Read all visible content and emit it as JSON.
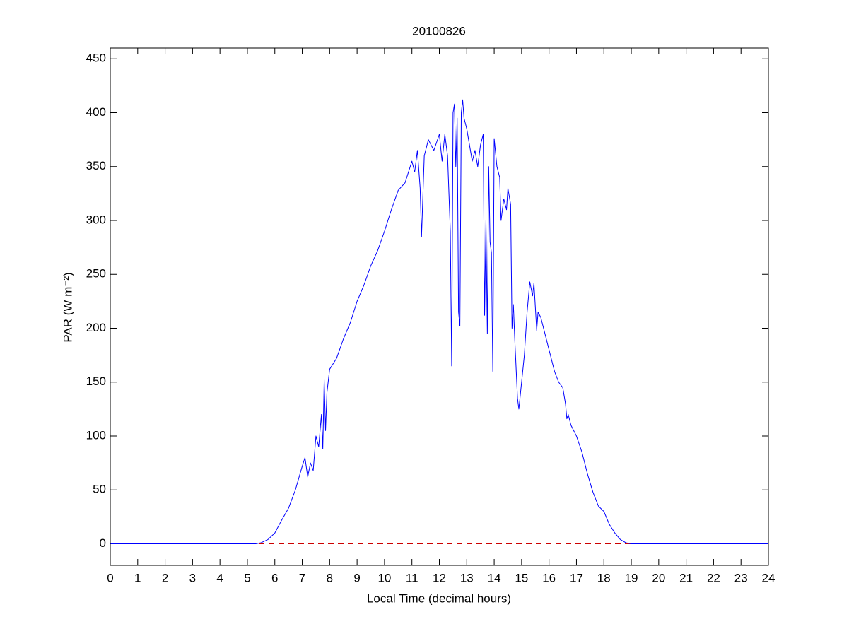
{
  "chart_data": {
    "type": "line",
    "title": "20100826",
    "x_label": "Local Time (decimal hours)",
    "y_label": "PAR (W m⁻²)",
    "x": [
      0,
      5.3,
      5.5,
      5.75,
      6,
      6.25,
      6.5,
      6.75,
      7,
      7.1,
      7.2,
      7.3,
      7.4,
      7.5,
      7.6,
      7.7,
      7.75,
      7.8,
      7.85,
      7.9,
      8,
      8.25,
      8.5,
      8.75,
      9,
      9.25,
      9.5,
      9.75,
      10,
      10.25,
      10.5,
      10.75,
      11,
      11.1,
      11.2,
      11.3,
      11.35,
      11.45,
      11.6,
      11.8,
      12,
      12.1,
      12.2,
      12.3,
      12.4,
      12.45,
      12.5,
      12.55,
      12.6,
      12.65,
      12.7,
      12.75,
      12.8,
      12.85,
      12.9,
      13,
      13.1,
      13.2,
      13.3,
      13.4,
      13.5,
      13.6,
      13.65,
      13.7,
      13.75,
      13.8,
      13.85,
      13.9,
      13.95,
      14,
      14.1,
      14.2,
      14.25,
      14.35,
      14.45,
      14.5,
      14.6,
      14.65,
      14.7,
      14.75,
      14.85,
      14.9,
      15,
      15.1,
      15.2,
      15.3,
      15.4,
      15.45,
      15.5,
      15.55,
      15.6,
      15.7,
      15.8,
      15.9,
      16,
      16.2,
      16.35,
      16.5,
      16.6,
      16.65,
      16.7,
      16.8,
      17,
      17.2,
      17.4,
      17.6,
      17.8,
      18,
      18.2,
      18.4,
      18.6,
      18.8,
      19,
      24
    ],
    "series": [
      {
        "color": "#0000ff",
        "values": [
          0,
          0,
          1,
          4,
          10,
          22,
          33,
          50,
          72,
          80,
          62,
          75,
          68,
          100,
          90,
          120,
          88,
          152,
          105,
          140,
          162,
          172,
          190,
          205,
          225,
          240,
          258,
          272,
          290,
          310,
          328,
          335,
          355,
          345,
          365,
          330,
          285,
          360,
          375,
          365,
          380,
          355,
          380,
          360,
          290,
          165,
          400,
          408,
          350,
          395,
          215,
          202,
          400,
          412,
          395,
          385,
          370,
          355,
          365,
          350,
          370,
          380,
          212,
          300,
          195,
          350,
          280,
          270,
          160,
          376,
          350,
          340,
          300,
          320,
          310,
          330,
          315,
          200,
          222,
          190,
          135,
          125,
          150,
          175,
          215,
          243,
          230,
          242,
          220,
          198,
          215,
          210,
          200,
          190,
          180,
          160,
          150,
          145,
          130,
          116,
          120,
          110,
          100,
          85,
          65,
          48,
          35,
          30,
          18,
          10,
          4,
          1,
          0,
          0
        ]
      }
    ],
    "reference_line": {
      "y": 0,
      "color": "#cc0000",
      "style": "dashed"
    },
    "xlim": [
      0,
      24
    ],
    "ylim": [
      -20,
      460
    ],
    "xticks": [
      0,
      1,
      2,
      3,
      4,
      5,
      6,
      7,
      8,
      9,
      10,
      11,
      12,
      13,
      14,
      15,
      16,
      17,
      18,
      19,
      20,
      21,
      22,
      23,
      24
    ],
    "yticks": [
      0,
      50,
      100,
      150,
      200,
      250,
      300,
      350,
      400,
      450
    ],
    "grid": false
  }
}
